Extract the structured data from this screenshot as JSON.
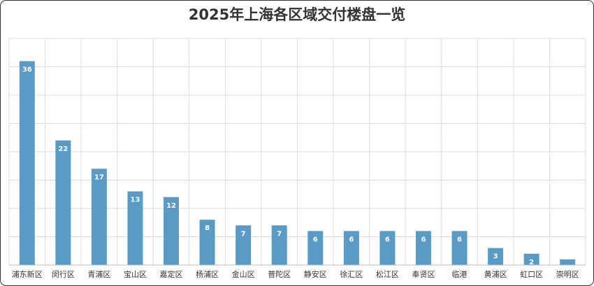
{
  "chart_data": {
    "type": "bar",
    "title": "2025年上海各区域交付楼盘一览",
    "categories": [
      "浦东新区",
      "闵行区",
      "青浦区",
      "宝山区",
      "嘉定区",
      "杨浦区",
      "金山区",
      "普陀区",
      "静安区",
      "徐汇区",
      "松江区",
      "奉贤区",
      "临港",
      "黄浦区",
      "虹口区",
      "崇明区"
    ],
    "values": [
      36,
      22,
      17,
      13,
      12,
      8,
      7,
      7,
      6,
      6,
      6,
      6,
      6,
      3,
      2,
      1
    ],
    "color": "#5a9bc6",
    "ylim": [
      0,
      40
    ],
    "yticks": [
      0,
      5,
      10,
      15,
      20,
      25,
      30,
      35,
      40
    ],
    "grid": true
  }
}
